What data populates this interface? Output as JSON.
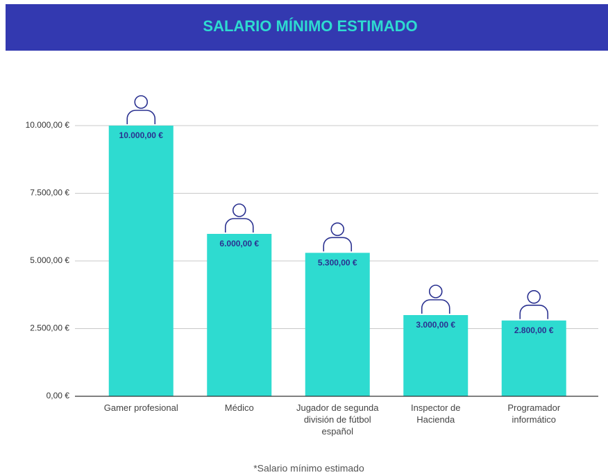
{
  "chart_data": {
    "type": "bar",
    "title": "SALARIO MÍNIMO ESTIMADO",
    "categories": [
      "Gamer profesional",
      "Médico",
      "Jugador de segunda división de fútbol español",
      "Inspector de Hacienda",
      "Programador informático"
    ],
    "values": [
      10000,
      6000,
      5300,
      3000,
      2800
    ],
    "value_labels": [
      "10.000,00 €",
      "6.000,00 €",
      "5.300,00 €",
      "3.000,00 €",
      "2.800,00 €"
    ],
    "color": "#2edbd0",
    "ylim": [
      0,
      10000
    ],
    "yticks": [
      {
        "value": 0,
        "label": "0,00 €"
      },
      {
        "value": 2500,
        "label": "2.500,00 €"
      },
      {
        "value": 5000,
        "label": "5.000,00 €"
      },
      {
        "value": 7500,
        "label": "7.500,00 €"
      },
      {
        "value": 10000,
        "label": "10.000,00 €"
      }
    ],
    "grid": true,
    "footnote": "*Salario mínimo estimado"
  }
}
